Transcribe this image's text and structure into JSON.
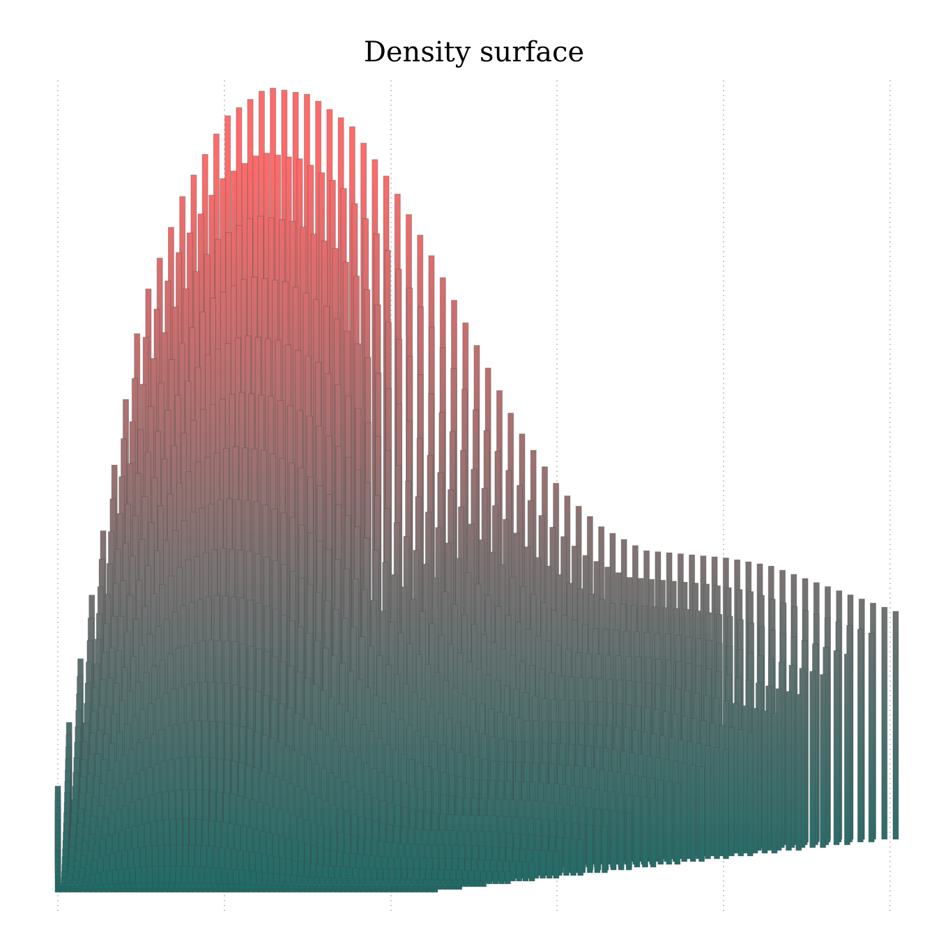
{
  "chart_data": {
    "type": "area",
    "title": "Density surface",
    "xlabel": "",
    "ylabel": "",
    "grid": {
      "vertical": true,
      "horizontal": false,
      "style": "dotted",
      "tick_labels_visible": false
    },
    "rows": 20,
    "columns": 75,
    "x_range": [
      0,
      1
    ],
    "z_range": [
      0,
      1
    ],
    "back_row_profile": {
      "x": [
        0.0,
        0.05,
        0.1,
        0.15,
        0.2,
        0.25,
        0.3,
        0.35,
        0.4,
        0.45,
        0.5,
        0.55,
        0.6,
        0.65,
        0.7,
        0.75,
        0.8,
        0.85,
        0.9,
        0.95,
        1.0
      ],
      "z": [
        0.07,
        0.38,
        0.7,
        0.85,
        0.95,
        0.99,
        0.98,
        0.94,
        0.86,
        0.76,
        0.65,
        0.54,
        0.46,
        0.41,
        0.38,
        0.375,
        0.37,
        0.36,
        0.34,
        0.32,
        0.3
      ]
    },
    "colors": {
      "low": "#1f6b67",
      "high": "#ff6b6b",
      "grid": "#bbbbbb"
    }
  }
}
